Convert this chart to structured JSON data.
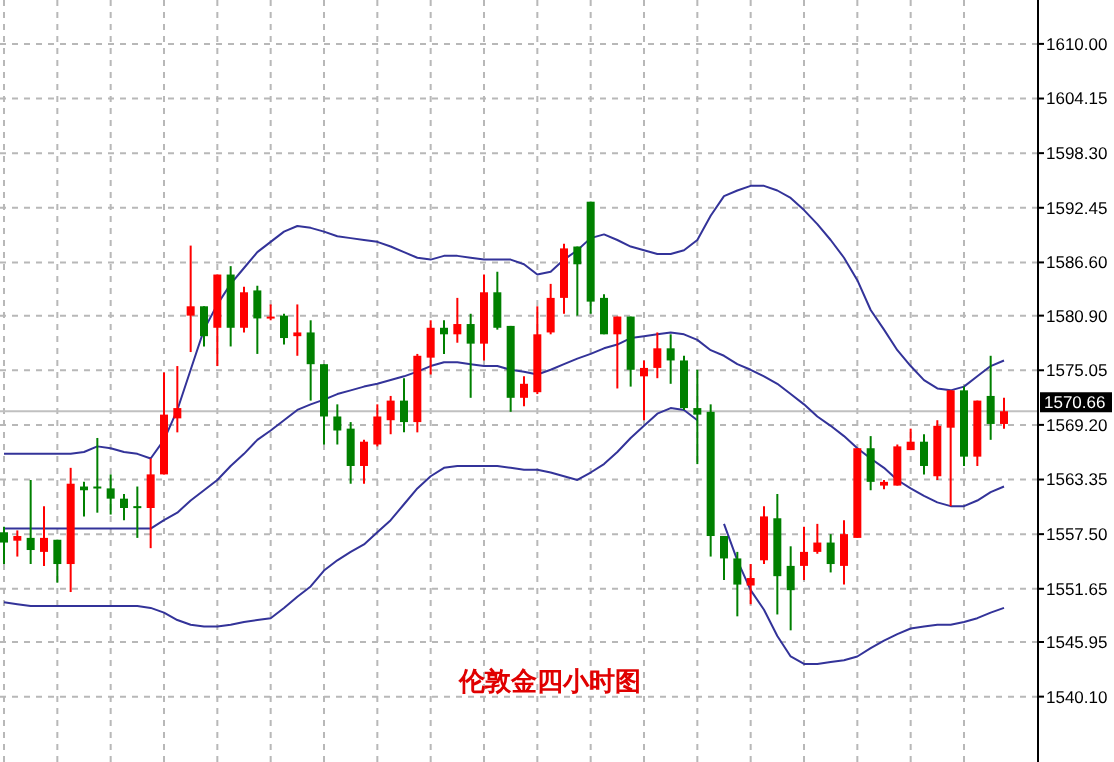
{
  "chart_data": {
    "type": "candlestick",
    "title": "伦敦金四小时图",
    "categories": [
      null,
      null,
      null,
      null,
      null,
      null,
      null,
      null,
      null,
      null,
      null,
      null,
      null,
      null,
      null,
      null,
      null,
      null,
      null,
      null,
      null,
      null,
      null,
      null,
      null,
      null,
      null,
      null,
      null,
      null,
      null,
      null,
      null,
      null,
      null,
      null,
      null,
      null,
      null,
      null,
      null,
      null,
      null,
      null,
      null,
      null,
      null,
      null,
      null,
      null,
      null,
      null,
      null,
      null,
      null,
      null,
      null,
      null,
      null,
      null,
      null,
      null,
      null,
      null,
      null,
      null,
      null,
      null,
      null,
      null,
      null,
      null,
      null,
      null,
      null,
      null
    ],
    "ohlc": [
      [
        1557.7,
        1558.3,
        1554.3,
        1556.6
      ],
      [
        1556.8,
        1557.9,
        1555.1,
        1557.3
      ],
      [
        1557.1,
        1563.3,
        1554.3,
        1555.8
      ],
      [
        1555.6,
        1560.5,
        1554.1,
        1557.1
      ],
      [
        1556.9,
        1556.9,
        1552.3,
        1554.3
      ],
      [
        1554.3,
        1564.6,
        1551.3,
        1562.9
      ],
      [
        1562.6,
        1563.1,
        1559.4,
        1562.2
      ],
      [
        1562.6,
        1567.8,
        1559.8,
        1562.4
      ],
      [
        1562.4,
        1563.9,
        1559.6,
        1561.3
      ],
      [
        1561.3,
        1561.8,
        1559.0,
        1560.3
      ],
      [
        1560.5,
        1562.6,
        1557.1,
        1560.3
      ],
      [
        1560.3,
        1565.6,
        1556.0,
        1563.9
      ],
      [
        1563.9,
        1574.8,
        1563.9,
        1570.3
      ],
      [
        1569.9,
        1575.5,
        1568.4,
        1571.0
      ],
      [
        1580.9,
        1588.4,
        1577.0,
        1581.9
      ],
      [
        1581.9,
        1581.9,
        1577.6,
        1578.7
      ],
      [
        1579.6,
        1585.3,
        1575.5,
        1585.3
      ],
      [
        1585.3,
        1586.2,
        1577.6,
        1579.6
      ],
      [
        1579.6,
        1584.0,
        1579.1,
        1583.4
      ],
      [
        1583.6,
        1584.1,
        1576.8,
        1580.6
      ],
      [
        1580.6,
        1582.1,
        1580.4,
        1580.8
      ],
      [
        1580.9,
        1581.1,
        1577.8,
        1578.5
      ],
      [
        1578.7,
        1582.1,
        1576.6,
        1579.1
      ],
      [
        1579.1,
        1580.4,
        1571.8,
        1575.7
      ],
      [
        1575.7,
        1575.7,
        1567.1,
        1570.1
      ],
      [
        1570.1,
        1571.4,
        1567.1,
        1568.6
      ],
      [
        1568.8,
        1569.5,
        1562.9,
        1564.8
      ],
      [
        1564.8,
        1567.6,
        1562.9,
        1567.4
      ],
      [
        1567.1,
        1571.4,
        1566.9,
        1570.1
      ],
      [
        1569.7,
        1572.3,
        1568.2,
        1571.8
      ],
      [
        1571.8,
        1574.2,
        1568.4,
        1569.5
      ],
      [
        1569.5,
        1576.8,
        1568.4,
        1576.6
      ],
      [
        1576.4,
        1580.4,
        1574.6,
        1579.6
      ],
      [
        1579.6,
        1580.4,
        1576.8,
        1578.9
      ],
      [
        1578.9,
        1582.8,
        1578.0,
        1580.0
      ],
      [
        1580.0,
        1581.1,
        1572.1,
        1577.9
      ],
      [
        1577.9,
        1585.3,
        1576.1,
        1583.4
      ],
      [
        1583.4,
        1585.6,
        1579.4,
        1579.6
      ],
      [
        1579.8,
        1579.8,
        1570.6,
        1572.1
      ],
      [
        1572.1,
        1574.4,
        1571.2,
        1573.6
      ],
      [
        1572.7,
        1581.9,
        1572.5,
        1578.9
      ],
      [
        1579.1,
        1584.3,
        1578.9,
        1582.8
      ],
      [
        1582.8,
        1588.6,
        1581.1,
        1588.1
      ],
      [
        1588.3,
        1588.3,
        1580.9,
        1586.4
      ],
      [
        1593.1,
        1593.1,
        1581.1,
        1582.4
      ],
      [
        1582.8,
        1583.2,
        1578.9,
        1578.9
      ],
      [
        1578.9,
        1580.8,
        1573.1,
        1580.8
      ],
      [
        1580.8,
        1580.8,
        1573.3,
        1575.1
      ],
      [
        1574.4,
        1576.1,
        1569.7,
        1575.3
      ],
      [
        1575.3,
        1579.1,
        1574.2,
        1577.4
      ],
      [
        1577.4,
        1578.9,
        1573.6,
        1576.1
      ],
      [
        1576.1,
        1576.6,
        1570.8,
        1571.0
      ],
      [
        1571.0,
        1575.1,
        1565.0,
        1570.3
      ],
      [
        1570.6,
        1571.4,
        1555.1,
        1557.3
      ],
      [
        1557.3,
        1557.3,
        1552.6,
        1554.9
      ],
      [
        1554.9,
        1555.6,
        1548.7,
        1552.1
      ],
      [
        1552.0,
        1554.3,
        1550.0,
        1552.8
      ],
      [
        1554.7,
        1560.5,
        1554.3,
        1559.4
      ],
      [
        1559.2,
        1561.8,
        1548.9,
        1553.0
      ],
      [
        1554.1,
        1556.2,
        1547.2,
        1551.5
      ],
      [
        1554.1,
        1558.3,
        1552.6,
        1555.6
      ],
      [
        1555.6,
        1558.6,
        1555.4,
        1556.6
      ],
      [
        1556.6,
        1557.5,
        1553.4,
        1554.3
      ],
      [
        1554.1,
        1559.0,
        1552.1,
        1557.5
      ],
      [
        1557.1,
        1566.7,
        1557.1,
        1566.7
      ],
      [
        1566.7,
        1568.0,
        1562.2,
        1563.1
      ],
      [
        1562.7,
        1563.3,
        1562.3,
        1563.1
      ],
      [
        1562.7,
        1567.1,
        1562.7,
        1566.9
      ],
      [
        1566.5,
        1568.8,
        1566.5,
        1567.4
      ],
      [
        1567.4,
        1568.2,
        1563.9,
        1564.8
      ],
      [
        1563.7,
        1569.7,
        1563.3,
        1569.1
      ],
      [
        1568.9,
        1572.9,
        1560.5,
        1572.9
      ],
      [
        1572.9,
        1573.3,
        1564.8,
        1565.8
      ],
      [
        1565.8,
        1571.8,
        1564.8,
        1571.8
      ],
      [
        1572.3,
        1576.6,
        1567.6,
        1569.3
      ],
      [
        1569.3,
        1572.1,
        1568.8,
        1570.66
      ]
    ],
    "colors": [
      "#008000",
      "#ff0000",
      "#008000",
      "#ff0000",
      "#008000",
      "#ff0000",
      "#008000",
      "#008000",
      "#008000",
      "#008000",
      "#008000",
      "#ff0000",
      "#ff0000",
      "#ff0000",
      "#ff0000",
      "#008000",
      "#ff0000",
      "#008000",
      "#ff0000",
      "#008000",
      "#ff0000",
      "#008000",
      "#ff0000",
      "#008000",
      "#008000",
      "#008000",
      "#008000",
      "#ff0000",
      "#ff0000",
      "#ff0000",
      "#008000",
      "#ff0000",
      "#ff0000",
      "#008000",
      "#ff0000",
      "#008000",
      "#ff0000",
      "#008000",
      "#008000",
      "#ff0000",
      "#ff0000",
      "#ff0000",
      "#ff0000",
      "#008000",
      "#008000",
      "#008000",
      "#ff0000",
      "#008000",
      "#ff0000",
      "#ff0000",
      "#008000",
      "#008000",
      "#008000",
      "#008000",
      "#008000",
      "#008000",
      "#ff0000",
      "#ff0000",
      "#008000",
      "#008000",
      "#ff0000",
      "#ff0000",
      "#008000",
      "#ff0000",
      "#ff0000",
      "#008000",
      "#ff0000",
      "#ff0000",
      "#ff0000",
      "#008000",
      "#ff0000",
      "#ff0000",
      "#008000",
      "#ff0000",
      "#008000",
      "#ff0000"
    ],
    "series": [
      {
        "type": "line",
        "color": "#333399",
        "values": [
          1566.1,
          1566.1,
          1566.1,
          1566.1,
          1566.1,
          1566.1,
          1566.3,
          1566.9,
          1566.7,
          1566.3,
          1566.1,
          1565.6,
          1567.6,
          1570.8,
          1575.1,
          1579.4,
          1582.1,
          1584.3,
          1586.0,
          1587.7,
          1588.8,
          1589.9,
          1590.5,
          1590.3,
          1589.9,
          1589.4,
          1589.2,
          1589.0,
          1588.8,
          1588.3,
          1587.7,
          1587.1,
          1586.9,
          1587.3,
          1587.3,
          1587.1,
          1586.9,
          1586.9,
          1586.9,
          1586.4,
          1585.3,
          1585.6,
          1586.9,
          1587.9,
          1589.2,
          1589.6,
          1589.0,
          1588.3,
          1587.9,
          1587.5,
          1587.5,
          1587.9,
          1589.0,
          1591.6,
          1593.7,
          1594.3,
          1594.8,
          1594.8,
          1594.3,
          1593.5,
          1592.2,
          1590.7,
          1589.0,
          1587.1,
          1584.7,
          1581.5,
          1579.4,
          1577.2,
          1575.5,
          1574.0,
          1573.1,
          1572.9,
          1573.3,
          1574.4,
          1575.5,
          1576.1
        ]
      },
      {
        "type": "line",
        "color": "#333399",
        "values": [
          1558.1,
          1558.1,
          1558.1,
          1558.1,
          1558.1,
          1558.1,
          1558.1,
          1558.1,
          1558.1,
          1558.1,
          1558.1,
          1558.1,
          1559.0,
          1559.8,
          1561.1,
          1562.2,
          1563.3,
          1564.8,
          1566.1,
          1567.6,
          1568.6,
          1569.7,
          1570.8,
          1571.4,
          1571.9,
          1572.5,
          1572.9,
          1573.3,
          1573.6,
          1574.0,
          1574.4,
          1574.9,
          1575.5,
          1575.9,
          1575.9,
          1575.7,
          1575.5,
          1575.5,
          1575.1,
          1574.9,
          1574.6,
          1575.1,
          1575.7,
          1576.3,
          1576.8,
          1577.4,
          1577.8,
          1578.5,
          1578.7,
          1578.9,
          1579.1,
          1578.9,
          1578.3,
          1577.2,
          1576.6,
          1575.7,
          1575.1,
          1574.4,
          1573.6,
          1572.5,
          1571.4,
          1570.1,
          1569.1,
          1568.0,
          1566.7,
          1565.6,
          1564.6,
          1563.3,
          1562.4,
          1561.6,
          1560.9,
          1560.5,
          1560.5,
          1561.1,
          1562.0,
          1562.6
        ]
      },
      {
        "type": "line",
        "color": "#333399",
        "values": [
          1550.2,
          1550.0,
          1549.8,
          1549.8,
          1549.8,
          1549.8,
          1549.8,
          1549.8,
          1549.8,
          1549.8,
          1549.8,
          1549.6,
          1549.1,
          1548.3,
          1547.8,
          1547.6,
          1547.6,
          1547.8,
          1548.1,
          1548.3,
          1548.5,
          1549.6,
          1550.8,
          1551.9,
          1553.6,
          1554.7,
          1555.6,
          1556.4,
          1557.7,
          1559.0,
          1560.7,
          1562.4,
          1563.7,
          1564.6,
          1564.8,
          1564.8,
          1564.8,
          1564.8,
          1564.6,
          1564.4,
          1564.4,
          1564.1,
          1563.7,
          1563.3,
          1564.1,
          1565.0,
          1566.3,
          1567.8,
          1569.1,
          1570.4,
          1571.0,
          1570.8,
          1569.7,
          null,
          1558.6,
          1554.7,
          1551.5,
          1549.4,
          1546.6,
          1544.4,
          1543.6,
          1543.6,
          1543.8,
          1544.0,
          1544.4,
          1545.3,
          1546.1,
          1546.8,
          1547.4,
          1547.6,
          1547.8,
          1547.8,
          1548.1,
          1548.5,
          1549.1,
          1549.6
        ]
      }
    ],
    "ylim": [
      1533.1,
      1614.7
    ],
    "yticks": [
      {
        "value": 1540.1,
        "label": "1540.10"
      },
      {
        "value": 1545.95,
        "label": "1545.95"
      },
      {
        "value": 1551.65,
        "label": "1551.65"
      },
      {
        "value": 1557.5,
        "label": "1557.50"
      },
      {
        "value": 1563.35,
        "label": "1563.35"
      },
      {
        "value": 1569.2,
        "label": "1569.20"
      },
      {
        "value": 1575.05,
        "label": "1575.05"
      },
      {
        "value": 1580.9,
        "label": "1580.90"
      },
      {
        "value": 1586.6,
        "label": "1586.60"
      },
      {
        "value": 1592.45,
        "label": "1592.45"
      },
      {
        "value": 1598.3,
        "label": "1598.30"
      },
      {
        "value": 1604.15,
        "label": "1604.15"
      },
      {
        "value": 1610,
        "label": "1610.00"
      }
    ],
    "ref_lines": [
      {
        "axis": "y",
        "value": 1570.66,
        "label": "1570.66",
        "color": "#c0c0c0"
      }
    ],
    "grid": true,
    "tick_labels": "y"
  }
}
